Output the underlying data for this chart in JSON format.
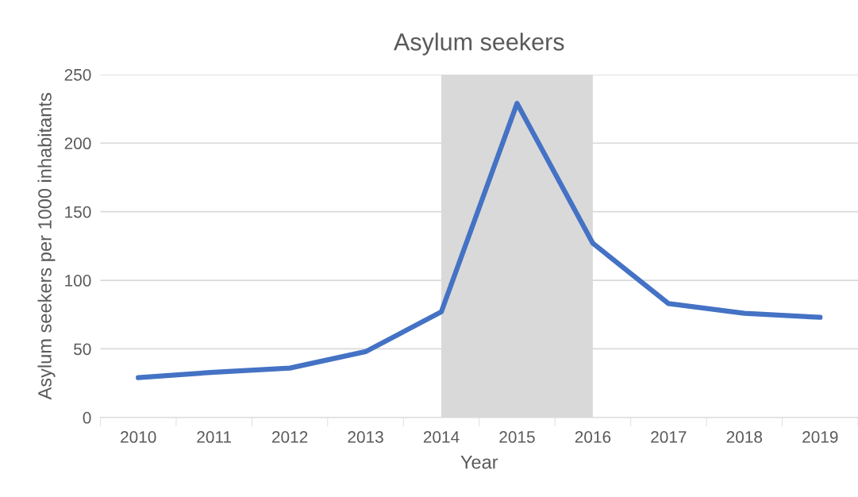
{
  "chart_data": {
    "type": "line",
    "title": "Asylum seekers",
    "xlabel": "Year",
    "ylabel": "Asylum seekers per 1000 inhabitants",
    "categories": [
      "2010",
      "2011",
      "2012",
      "2013",
      "2014",
      "2015",
      "2016",
      "2017",
      "2018",
      "2019"
    ],
    "series": [
      {
        "color": "#4472c4",
        "values": [
          29,
          33,
          36,
          48,
          77,
          229,
          127,
          83,
          76,
          73
        ]
      }
    ],
    "ylim": [
      0,
      250
    ],
    "yticks": [
      0,
      50,
      100,
      150,
      200,
      250
    ],
    "grid": "y",
    "marker": "none",
    "line_style": "solid",
    "bands": [
      {
        "axis": "x",
        "from": "2014",
        "to": "2016",
        "color": "#d9d9d9"
      }
    ]
  }
}
